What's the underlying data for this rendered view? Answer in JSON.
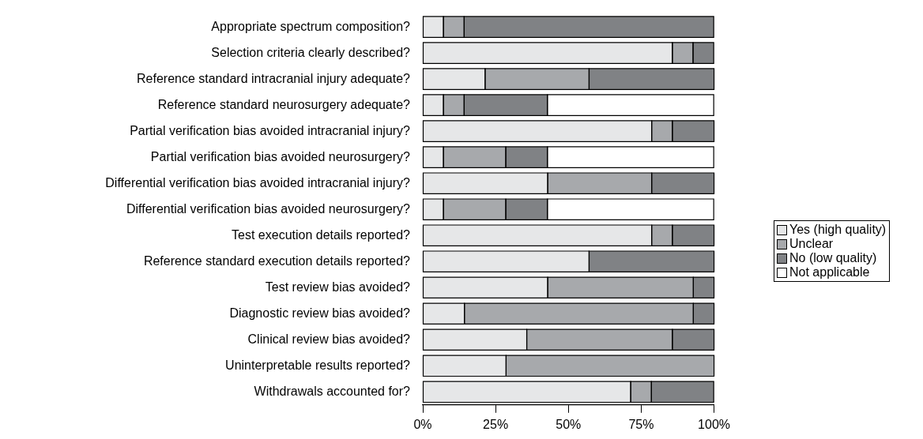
{
  "chart_data": {
    "type": "bar",
    "orientation": "horizontal",
    "stacked": true,
    "categories": [
      "Appropriate spectrum composition?",
      "Selection criteria clearly described?",
      "Reference standard intracranial injury adequate?",
      "Reference standard neurosurgery adequate?",
      "Partial verification bias avoided intracranial injury?",
      "Partial verification bias avoided neurosurgery?",
      "Differential verification bias avoided intracranial injury?",
      "Differential verification bias avoided neurosurgery?",
      "Test execution details reported?",
      "Reference standard execution details reported?",
      "Test review bias avoided?",
      "Diagnostic review bias avoided?",
      "Clinical review bias avoided?",
      "Uninterpretable results reported?",
      "Withdrawals accounted for?"
    ],
    "series": [
      {
        "name": "Yes (high quality)",
        "color": "#e6e7e8",
        "values": [
          7.1,
          85.7,
          21.4,
          7.1,
          78.6,
          7.1,
          42.9,
          7.1,
          78.6,
          57.1,
          42.9,
          14.3,
          35.7,
          28.6,
          71.4
        ]
      },
      {
        "name": "Unclear",
        "color": "#a7a9ac",
        "values": [
          7.1,
          7.1,
          35.7,
          7.1,
          7.1,
          21.4,
          35.7,
          21.4,
          7.1,
          0,
          50,
          78.6,
          50,
          71.4,
          7.1
        ]
      },
      {
        "name": "No (low quality)",
        "color": "#808285",
        "values": [
          85.7,
          7.1,
          42.9,
          28.6,
          14.3,
          14.3,
          21.4,
          14.3,
          14.3,
          42.9,
          7.1,
          7.1,
          14.3,
          0,
          21.4
        ]
      },
      {
        "name": "Not applicable",
        "color": "#ffffff",
        "values": [
          0,
          0,
          0,
          57.1,
          0,
          57.1,
          0,
          57.1,
          0,
          0,
          0,
          0,
          0,
          0,
          0
        ]
      }
    ],
    "xlim": [
      0,
      100
    ],
    "xticks": [
      {
        "value": 0,
        "label": "0%"
      },
      {
        "value": 25,
        "label": "25%"
      },
      {
        "value": 50,
        "label": "50%"
      },
      {
        "value": 75,
        "label": "75%"
      },
      {
        "value": 100,
        "label": "100%"
      }
    ],
    "grid": false,
    "legend": "right"
  }
}
